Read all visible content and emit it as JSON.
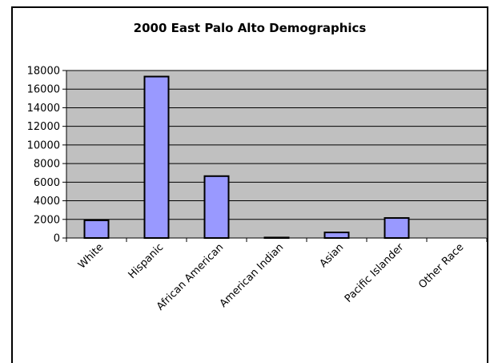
{
  "chart_data": {
    "type": "bar",
    "title": "2000 East Palo Alto Demographics",
    "categories": [
      "White",
      "Hispanic",
      "African American",
      "American Indian",
      "Asian",
      "Pacific Islander",
      "Other Race"
    ],
    "values": [
      1900,
      17350,
      6650,
      50,
      600,
      2150,
      0
    ],
    "xlabel": "",
    "ylabel": "",
    "ylim": [
      0,
      18000
    ],
    "yticks": [
      0,
      2000,
      4000,
      6000,
      8000,
      10000,
      12000,
      14000,
      16000,
      18000
    ],
    "grid": true,
    "legend": "none",
    "colors": {
      "plot_background": "#c0c0c0",
      "bar_fill": "#9999ff",
      "bar_stroke": "#000000",
      "gridline": "#000000"
    }
  }
}
